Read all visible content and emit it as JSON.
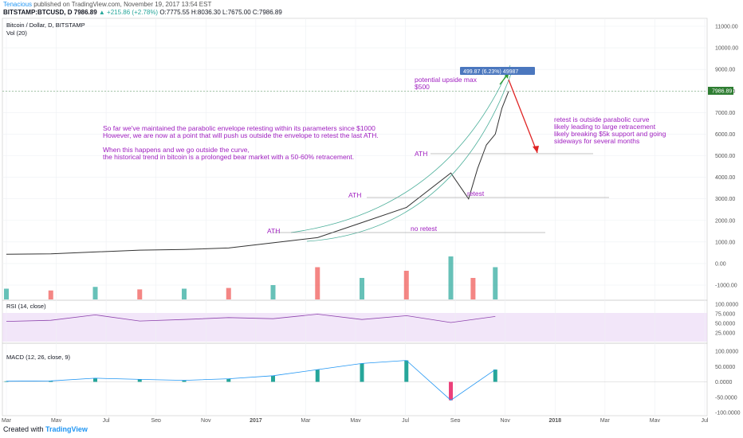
{
  "header": {
    "publisher": "Tenacious",
    "published_text": "published on TradingView.com, November 19, 2017 13:54 EST",
    "symbol": "BITSTAMP:BTCUSD, D",
    "last": "7986.89",
    "change": "▲ +215.86 (+2.78%)",
    "ohlc": "O:7775.55 H:8036.30 L:7675.00 C:7986.89"
  },
  "footer": {
    "created_with": "Created with",
    "brand": "TradingView"
  },
  "chart_data": {
    "type": "line",
    "title": "Bitcoin / Dollar, D, BITSTAMP",
    "volume_label": "Vol (20)",
    "x_ticks": [
      "Mar",
      "May",
      "Jul",
      "Sep",
      "Nov",
      "2017",
      "Mar",
      "May",
      "Jul",
      "Sep",
      "Nov",
      "2018",
      "Mar",
      "May",
      "Jul"
    ],
    "y_ticks": [
      11000,
      10000,
      9000,
      8000,
      7000,
      6000,
      5000,
      4000,
      3000,
      2000,
      1000,
      0,
      -1000
    ],
    "y_tick_labels": [
      "11000.00",
      "10000.00",
      "9000.00",
      "8000.00",
      "7000.00",
      "6000.00",
      "5000.00",
      "4000.00",
      "3000.00",
      "2000.00",
      "1000.00",
      "0.00",
      "-1000.00"
    ],
    "last_price_label": "7986.89",
    "price": {
      "x": [
        0,
        1,
        3,
        4,
        5,
        6,
        7,
        8,
        9,
        10,
        10.4,
        10.6,
        10.8,
        11,
        11.15,
        11.3
      ],
      "y": [
        430,
        450,
        620,
        650,
        720,
        960,
        1200,
        1900,
        2600,
        4200,
        3000,
        4400,
        5500,
        6000,
        7200,
        7987
      ]
    },
    "volume": {
      "x": [
        0,
        1,
        2,
        3,
        4,
        5,
        6,
        7,
        8,
        9,
        10,
        10.5,
        11
      ],
      "y": [
        300,
        250,
        350,
        280,
        300,
        320,
        400,
        900,
        600,
        800,
        1200,
        600,
        900
      ]
    },
    "rsi": {
      "label": "RSI (14, close)",
      "ticks": [
        "100.0000",
        "75.0000",
        "50.0000",
        "25.0000"
      ],
      "x": [
        0,
        1,
        2,
        3,
        4,
        5,
        6,
        7,
        8,
        9,
        10,
        11
      ],
      "y": [
        55,
        58,
        72,
        56,
        60,
        65,
        62,
        74,
        60,
        70,
        52,
        68
      ]
    },
    "macd": {
      "label": "MACD (12, 26, close, 9)",
      "ticks": [
        "100.0000",
        "50.0000",
        "0.0000",
        "-50.0000",
        "-100.0000"
      ],
      "x": [
        0,
        1,
        2,
        3,
        4,
        5,
        6,
        7,
        8,
        9,
        10,
        11
      ],
      "y": [
        2,
        3,
        12,
        8,
        5,
        10,
        20,
        40,
        60,
        70,
        -60,
        40
      ]
    },
    "annotations": {
      "measure": "499.87 (6.23%) 49987",
      "upside": [
        "potential upside max",
        "$500"
      ],
      "main_text": [
        "So far we've maintained the parabolic envelope retesting within its parameters since $1000",
        "However, we are now at a point that will push us outside the envelope to retest the last ATH.",
        "",
        "When this happens and we go outside the curve,",
        "the historical trend in bitcoin is a prolonged bear market with a 50-60% retracement."
      ],
      "right_text": [
        "retest is outside parabolic curve",
        "likely leading to large retracement",
        "likely breaking $5k support and going",
        "sideways for several months"
      ],
      "ath1": "ATH",
      "ath2": "ATH",
      "ath3": "ATH",
      "retest": "retest",
      "no_retest": "no retest"
    }
  }
}
